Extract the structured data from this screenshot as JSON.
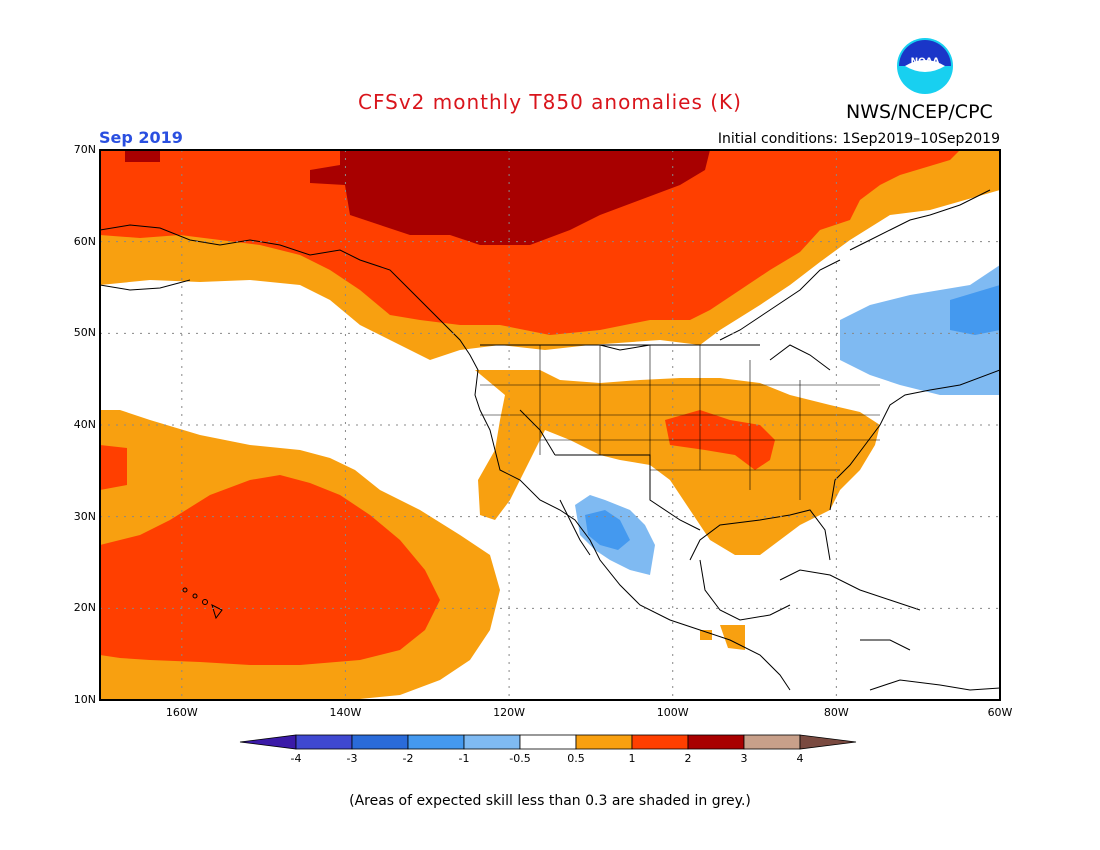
{
  "header": {
    "title": "CFSv2 monthly T850 anomalies (K)",
    "agency": "NWS/NCEP/CPC",
    "logo_text": "NOAA",
    "month": "Sep 2019",
    "initial_conditions": "Initial conditions: 1Sep2019–10Sep2019"
  },
  "map": {
    "lat_labels": [
      "70N",
      "60N",
      "50N",
      "40N",
      "30N",
      "20N",
      "10N"
    ],
    "lon_labels": [
      "160W",
      "140W",
      "120W",
      "100W",
      "80W",
      "60W"
    ],
    "lat_range": [
      10,
      70
    ],
    "lon_range": [
      -170,
      -60
    ]
  },
  "colorbar": {
    "units": "K",
    "labels": [
      "-4",
      "-3",
      "-2",
      "-1",
      "-0.5",
      "0.5",
      "1",
      "2",
      "3",
      "4"
    ],
    "colors": [
      "#3b1aa8",
      "#3f48d0",
      "#2a6bd9",
      "#4499ef",
      "#7fbaf2",
      "#ffffff",
      "#f8a010",
      "#ff3f00",
      "#a80000",
      "#c8a08a",
      "#7a4a40"
    ]
  },
  "footer": {
    "note": "(Areas of expected skill less than 0.3 are shaded in grey.)"
  }
}
